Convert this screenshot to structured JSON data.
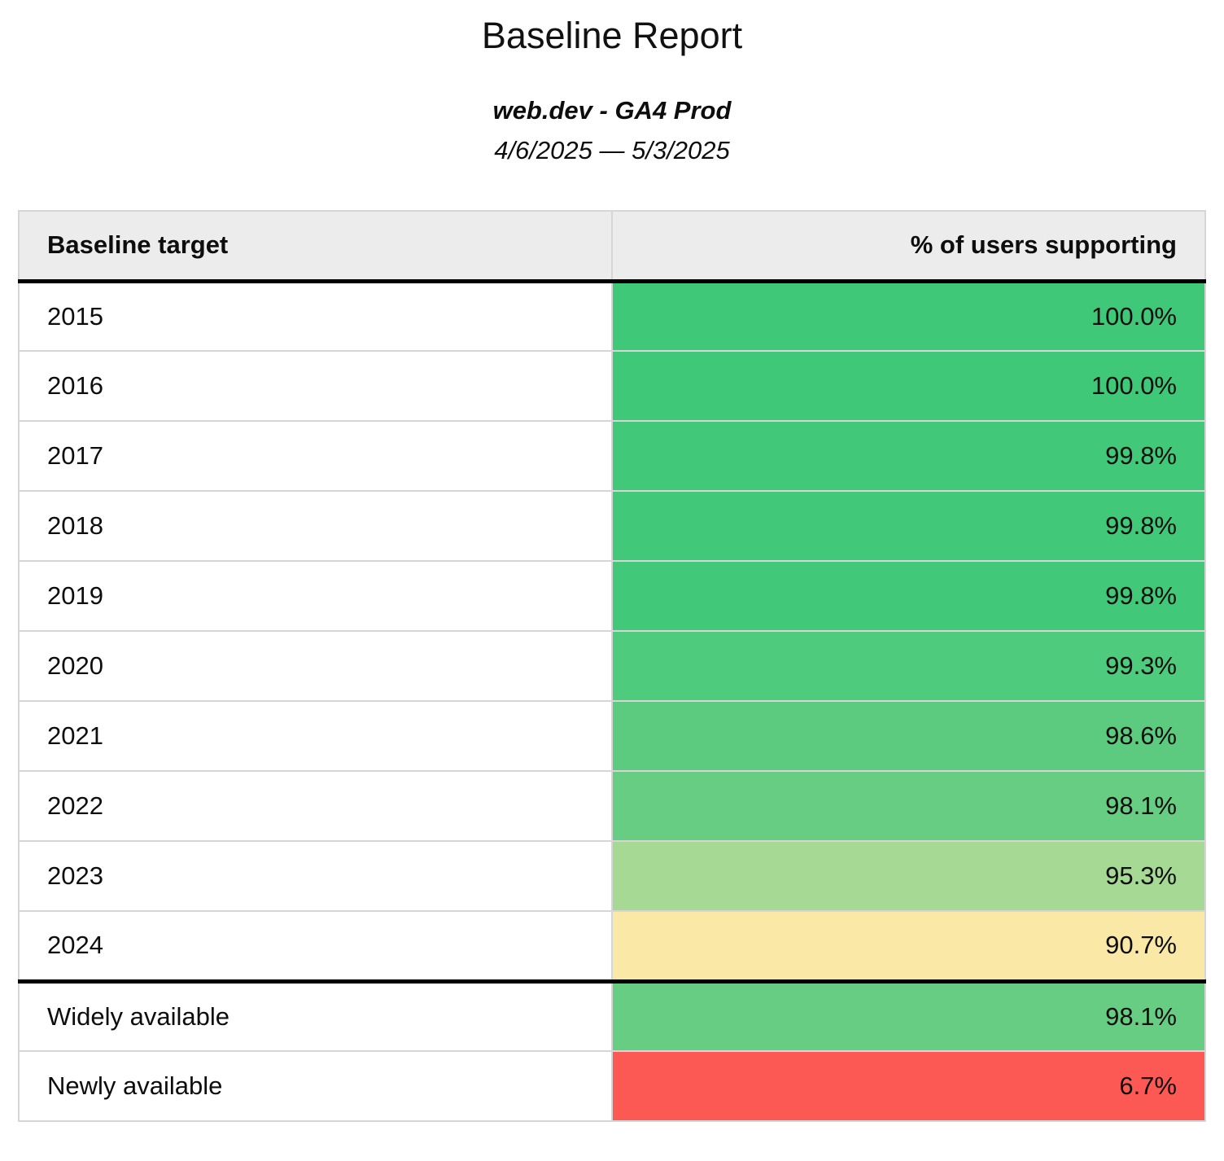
{
  "report": {
    "title": "Baseline Report",
    "subtitle": "web.dev - GA4 Prod",
    "date_range": "4/6/2025 — 5/3/2025"
  },
  "table": {
    "columns": {
      "target": "Baseline target",
      "support": "% of users supporting"
    },
    "rows": [
      {
        "label": "2015",
        "value": "100.0%",
        "color": "#3ec877",
        "group": "year"
      },
      {
        "label": "2016",
        "value": "100.0%",
        "color": "#3ec877",
        "group": "year"
      },
      {
        "label": "2017",
        "value": "99.8%",
        "color": "#41c979",
        "group": "year"
      },
      {
        "label": "2018",
        "value": "99.8%",
        "color": "#41c979",
        "group": "year"
      },
      {
        "label": "2019",
        "value": "99.8%",
        "color": "#41c979",
        "group": "year"
      },
      {
        "label": "2020",
        "value": "99.3%",
        "color": "#4ecb7c",
        "group": "year"
      },
      {
        "label": "2021",
        "value": "98.6%",
        "color": "#5ccb7f",
        "group": "year"
      },
      {
        "label": "2022",
        "value": "98.1%",
        "color": "#66cd82",
        "group": "year"
      },
      {
        "label": "2023",
        "value": "95.3%",
        "color": "#a6d994",
        "group": "year"
      },
      {
        "label": "2024",
        "value": "90.7%",
        "color": "#fae8a7",
        "group": "year"
      },
      {
        "label": "Widely available",
        "value": "98.1%",
        "color": "#66cd82",
        "group": "availability"
      },
      {
        "label": "Newly available",
        "value": "6.7%",
        "color": "#fd5954",
        "group": "availability"
      }
    ],
    "style_colors": {
      "header_background": "#ececec",
      "grid_line": "#d6d6d6",
      "section_divider": "#000000"
    }
  },
  "chart_data": {
    "type": "table",
    "title": "Baseline Report",
    "subtitle": "web.dev - GA4 Prod",
    "date_range": "4/6/2025 — 5/3/2025",
    "columns": [
      "Baseline target",
      "% of users supporting"
    ],
    "rows": [
      [
        "2015",
        100.0
      ],
      [
        "2016",
        100.0
      ],
      [
        "2017",
        99.8
      ],
      [
        "2018",
        99.8
      ],
      [
        "2019",
        99.8
      ],
      [
        "2020",
        99.3
      ],
      [
        "2021",
        98.6
      ],
      [
        "2022",
        98.1
      ],
      [
        "2023",
        95.3
      ],
      [
        "2024",
        90.7
      ],
      [
        "Widely available",
        98.1
      ],
      [
        "Newly available",
        6.7
      ]
    ],
    "units": "%",
    "value_range": [
      0,
      100
    ],
    "color_scale": "green (high) → yellow (mid) → red (low), applied to value cells"
  }
}
